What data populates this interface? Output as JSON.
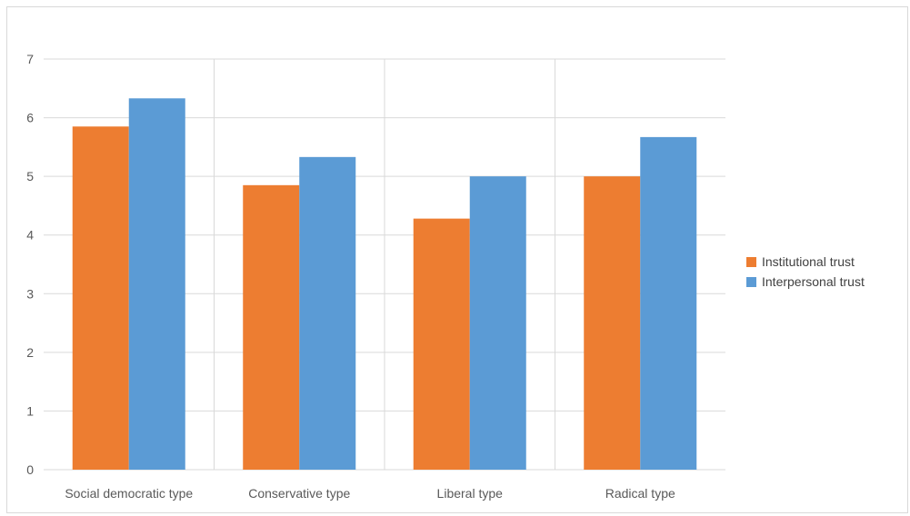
{
  "chart_data": {
    "type": "bar",
    "title": "",
    "xlabel": "",
    "ylabel": "",
    "ylim": [
      0,
      7
    ],
    "yticks": [
      0,
      1,
      2,
      3,
      4,
      5,
      6,
      7
    ],
    "grid": true,
    "legend_position": "right",
    "categories": [
      "Social democratic type",
      "Conservative type",
      "Liberal type",
      "Radical type"
    ],
    "series": [
      {
        "name": "Institutional trust",
        "color": "#ED7D31",
        "values": [
          5.85,
          4.85,
          4.28,
          5.0
        ]
      },
      {
        "name": "Interpersonal trust",
        "color": "#5B9BD5",
        "values": [
          6.33,
          5.33,
          5.0,
          5.67
        ]
      }
    ]
  }
}
